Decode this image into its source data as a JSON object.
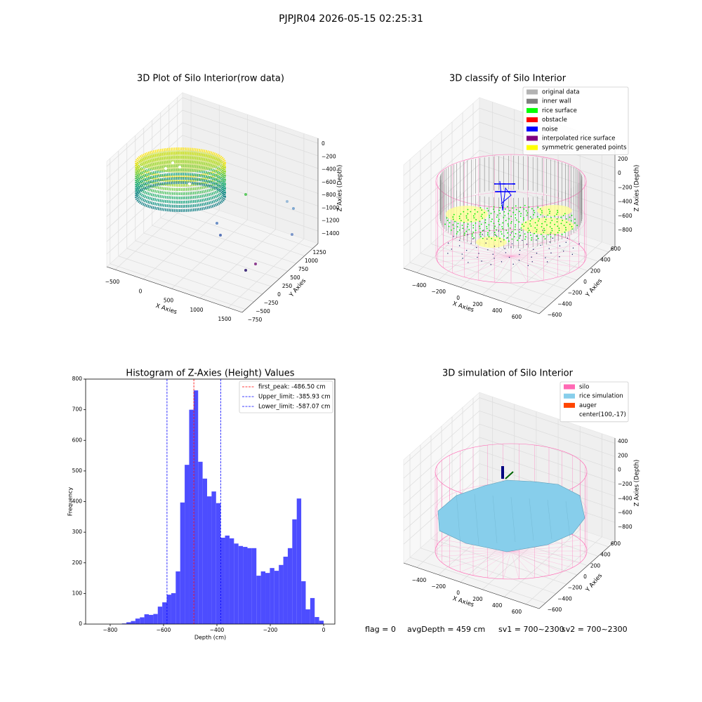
{
  "title": "PJPJR04 2026-05-15 02:25:31",
  "chart_data": [
    {
      "type": "scatter3d",
      "title": "3D Plot of Silo Interior(row data)",
      "xlabel": "X Axies",
      "ylabel": "Y Axies",
      "zlabel": "Z Axies (Depth)",
      "xlim": [
        -650,
        1750
      ],
      "ylim": [
        -850,
        1400
      ],
      "zlim": [
        -1600,
        80
      ],
      "xticks": [
        {
          "value": -500,
          "label": "−500"
        },
        0,
        500,
        1000,
        1500
      ],
      "yticks": [
        {
          "value": -750,
          "label": "−750"
        },
        {
          "value": -500,
          "label": "−500"
        },
        {
          "value": -250,
          "label": "−250"
        },
        0,
        250,
        500,
        750,
        1000,
        1250
      ],
      "zticks": [
        {
          "value": -1400,
          "label": "−1400"
        },
        {
          "value": -1200,
          "label": "−1200"
        },
        {
          "value": -1000,
          "label": "−1000"
        },
        {
          "value": -800,
          "label": "−800"
        },
        {
          "value": -600,
          "label": "−600"
        },
        {
          "value": -400,
          "label": "−400"
        },
        {
          "value": -200,
          "label": "−200"
        },
        0
      ],
      "grid": true
    },
    {
      "type": "classify3d",
      "title": "3D classify of Silo Interior",
      "xlabel": "X Axies",
      "ylabel": "Y Axies",
      "zlabel": "Z Axies (Depth)",
      "xlim": [
        -520,
        720
      ],
      "ylim": [
        -720,
        720
      ],
      "zlim": [
        -1120,
        350
      ],
      "xticks": [
        {
          "value": -400,
          "label": "−400"
        },
        {
          "value": -200,
          "label": "−200"
        },
        0,
        200,
        400,
        600
      ],
      "yticks": [
        {
          "value": -600,
          "label": "−600"
        },
        {
          "value": -400,
          "label": "−400"
        },
        {
          "value": -200,
          "label": "−200"
        },
        0,
        200,
        400,
        600
      ],
      "zticks": [
        {
          "value": -800,
          "label": "−800"
        },
        {
          "value": -600,
          "label": "−600"
        },
        {
          "value": -400,
          "label": "−400"
        },
        {
          "value": -200,
          "label": "−200"
        },
        0,
        200
      ],
      "grid": true,
      "legend": [
        {
          "name": "original data",
          "color": "#b3b3b3"
        },
        {
          "name": "inner wall",
          "color": "#808080"
        },
        {
          "name": "rice surface",
          "color": "#00ff00"
        },
        {
          "name": "obstacle",
          "color": "#ff0000"
        },
        {
          "name": "noise",
          "color": "#0000ff"
        },
        {
          "name": "interpolated rice surface",
          "color": "#800080"
        },
        {
          "name": "symmetric generated points",
          "color": "#ffff00"
        }
      ]
    },
    {
      "type": "histogram",
      "title": "Histogram of Z-Axies (Height) Values",
      "xlabel": "Depth (cm)",
      "ylabel": "Frequency",
      "bins": [
        -756,
        -739.2,
        -722.4,
        -705.6,
        -688.8,
        -672,
        -655.2,
        -638.4,
        -621.6,
        -604.8,
        -588,
        -571.2,
        -554.4,
        -537.6,
        -520.8,
        -504,
        -487.2,
        -470.4,
        -453.6,
        -436.8,
        -420,
        -403.2,
        -386.4,
        -369.6,
        -352.8,
        -336,
        -319.2,
        -302.4,
        -285.6,
        -268.8,
        -252,
        -235.2,
        -218.4,
        -201.6,
        -184.8,
        -168,
        -151.2,
        -134.4,
        -117.6,
        -100.8,
        -84,
        -67.2,
        -50.4,
        -33.6,
        -16.8,
        0
      ],
      "counts": [
        2,
        6,
        10,
        18,
        22,
        32,
        30,
        33,
        57,
        71,
        96,
        101,
        172,
        397,
        520,
        700,
        763,
        530,
        475,
        417,
        433,
        395,
        282,
        289,
        280,
        263,
        255,
        252,
        248,
        248,
        158,
        172,
        167,
        183,
        174,
        193,
        220,
        248,
        342,
        410,
        140,
        48,
        85,
        23,
        11
      ],
      "color": "#4d4dff",
      "xlim": [
        -892,
        42
      ],
      "ylim": [
        0,
        800
      ],
      "xticks": [
        {
          "value": -800,
          "label": "−800"
        },
        {
          "value": -600,
          "label": "−600"
        },
        {
          "value": -400,
          "label": "−400"
        },
        {
          "value": -200,
          "label": "−200"
        },
        0
      ],
      "yticks": [
        0,
        100,
        200,
        300,
        400,
        500,
        600,
        700,
        800
      ],
      "lines": [
        {
          "name": "first_peak: -486.50 cm",
          "value": -486.5,
          "color": "#ff0000"
        },
        {
          "name": "Upper_limit: -385.93 cm",
          "value": -385.93,
          "color": "#0000ff"
        },
        {
          "name": "Lower_limit: -587.07 cm",
          "value": -587.07,
          "color": "#0000ff"
        }
      ],
      "legend_loc": "upper right"
    },
    {
      "type": "surface3d",
      "title": "3D simulation of Silo Interior",
      "xlabel": "X Axies",
      "ylabel": "Y Axies",
      "zlabel": "Z Axies (Depth)",
      "xlim": [
        -520,
        720
      ],
      "ylim": [
        -720,
        720
      ],
      "zlim": [
        -1085,
        480
      ],
      "xticks": [
        {
          "value": -400,
          "label": "−400"
        },
        {
          "value": -200,
          "label": "−200"
        },
        0,
        200,
        400,
        600
      ],
      "yticks": [
        {
          "value": -600,
          "label": "−600"
        },
        {
          "value": -400,
          "label": "−400"
        },
        {
          "value": -200,
          "label": "−200"
        },
        0,
        200,
        400,
        600
      ],
      "zticks": [
        {
          "value": -800,
          "label": "−800"
        },
        {
          "value": -600,
          "label": "−600"
        },
        {
          "value": -400,
          "label": "−400"
        },
        {
          "value": -200,
          "label": "−200"
        },
        0,
        200,
        400
      ],
      "grid": true,
      "legend": [
        {
          "name": "silo",
          "color": "#ff69b4"
        },
        {
          "name": "rice simulation",
          "color": "#87ceeb"
        },
        {
          "name": "auger",
          "color": "#ff4500"
        },
        {
          "name": "center(100,-17)"
        }
      ]
    }
  ],
  "footer": [
    "flag = 0",
    "avgDepth = 459 cm",
    "sv1 = 700~2300",
    "sv2 = 700~2300"
  ]
}
